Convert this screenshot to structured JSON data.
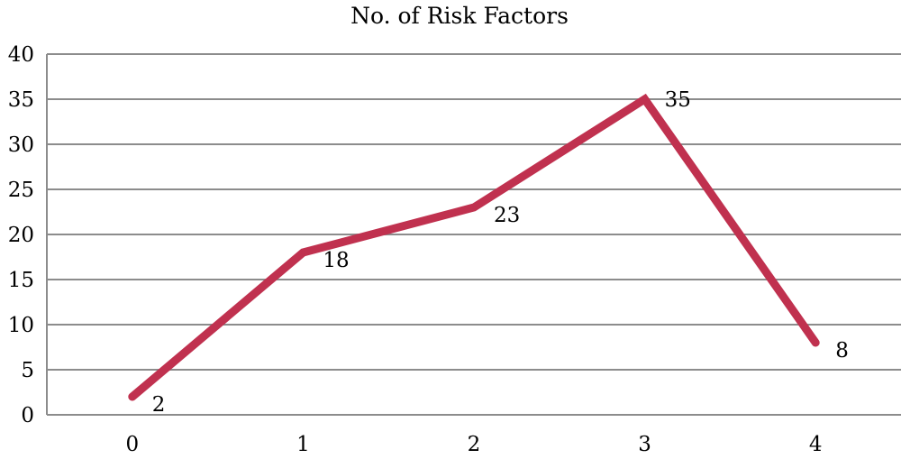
{
  "chart_data": {
    "type": "line",
    "title": "No. of Risk Factors",
    "xlabel": "",
    "ylabel": "",
    "categories": [
      "0",
      "1",
      "2",
      "3",
      "4"
    ],
    "series": [
      {
        "values": [
          2,
          18,
          23,
          35,
          8
        ],
        "color": "#c0314f"
      }
    ],
    "data_labels": [
      "2",
      "18",
      "23",
      "35",
      "8"
    ],
    "ylim": [
      0,
      40
    ],
    "yticks": [
      0,
      5,
      10,
      15,
      20,
      25,
      30,
      35,
      40
    ],
    "ytick_labels": [
      "0",
      "5",
      "10",
      "15",
      "20",
      "25",
      "30",
      "35",
      "40"
    ],
    "grid": true,
    "legend": "none"
  }
}
